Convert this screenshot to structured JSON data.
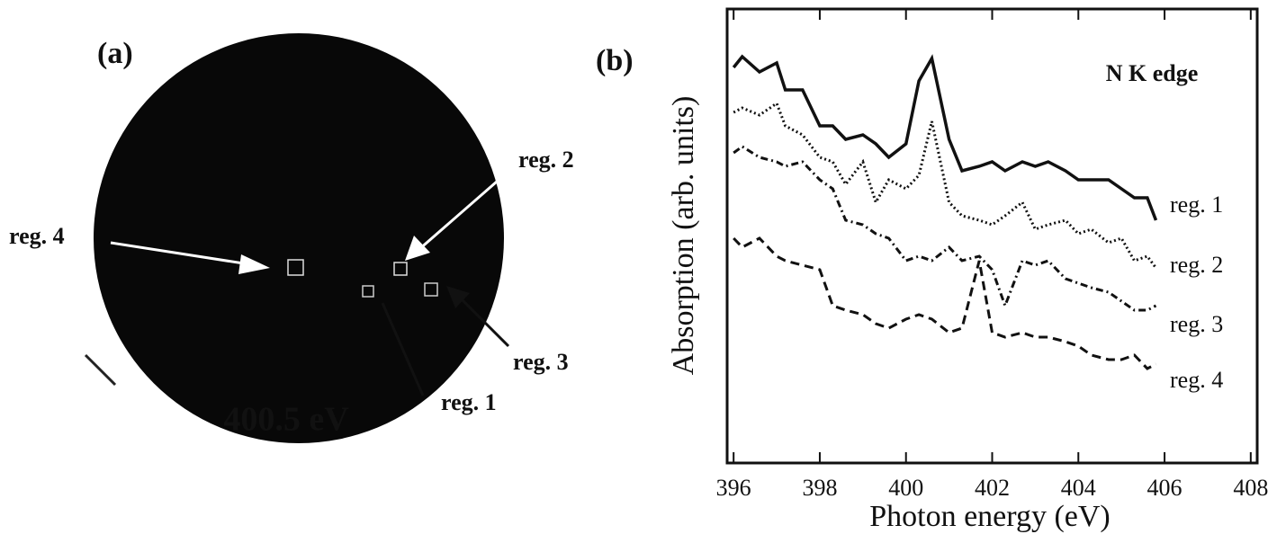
{
  "image_panel": {
    "label": "(a)",
    "caption": "400.5 eV",
    "regions": [
      "reg. 1",
      "reg. 2",
      "reg. 3",
      "reg. 4"
    ]
  },
  "chart_data": {
    "type": "line",
    "panel_label": "(b)",
    "annotation": "N K edge",
    "x_label": "Photon energy (eV)",
    "y_label": "Absorption (arb. units)",
    "x": [
      396.0,
      396.2,
      396.6,
      397.0,
      397.2,
      397.6,
      398.0,
      398.3,
      398.6,
      399.0,
      399.3,
      399.6,
      400.0,
      400.3,
      400.6,
      401.0,
      401.3,
      401.7,
      402.0,
      402.3,
      402.7,
      403.0,
      403.3,
      403.7,
      404.0,
      404.3,
      404.7,
      405.0,
      405.3,
      405.6,
      405.8
    ],
    "series": [
      {
        "name": "reg. 1",
        "color": "#111111",
        "dash": "solid",
        "values": [
          8.8,
          9.04,
          8.7,
          8.9,
          8.3,
          8.3,
          7.5,
          7.5,
          7.2,
          7.3,
          7.1,
          6.8,
          7.1,
          8.5,
          9.0,
          7.2,
          6.5,
          6.6,
          6.7,
          6.5,
          6.7,
          6.6,
          6.7,
          6.5,
          6.3,
          6.3,
          6.3,
          6.1,
          5.9,
          5.9,
          5.4
        ]
      },
      {
        "name": "reg. 2",
        "color": "#111111",
        "dash": "dotted",
        "values": [
          7.8,
          7.9,
          7.74,
          8.0,
          7.5,
          7.3,
          6.8,
          6.7,
          6.2,
          6.7,
          5.8,
          6.3,
          6.1,
          6.4,
          7.6,
          5.8,
          5.5,
          5.4,
          5.3,
          5.5,
          5.8,
          5.2,
          5.3,
          5.4,
          5.1,
          5.2,
          4.9,
          5.0,
          4.5,
          4.6,
          4.34
        ]
      },
      {
        "name": "reg. 3",
        "color": "#111111",
        "dash": "dashdot",
        "values": [
          6.9,
          7.04,
          6.8,
          6.7,
          6.6,
          6.7,
          6.3,
          6.1,
          5.4,
          5.3,
          5.1,
          5.0,
          4.5,
          4.6,
          4.5,
          4.8,
          4.5,
          4.6,
          4.3,
          3.5,
          4.5,
          4.4,
          4.5,
          4.1,
          4.0,
          3.9,
          3.8,
          3.6,
          3.4,
          3.4,
          3.5
        ]
      },
      {
        "name": "reg. 4",
        "color": "#111111",
        "dash": "dashed",
        "values": [
          5.0,
          4.8,
          5.0,
          4.6,
          4.5,
          4.4,
          4.3,
          3.5,
          3.4,
          3.3,
          3.1,
          3.0,
          3.2,
          3.3,
          3.2,
          2.9,
          3.0,
          4.5,
          2.9,
          2.8,
          2.9,
          2.8,
          2.8,
          2.7,
          2.6,
          2.4,
          2.3,
          2.3,
          2.4,
          2.1,
          2.2
        ]
      }
    ],
    "xlim": [
      395.85,
      408.15
    ],
    "xticks": [
      396,
      398,
      400,
      402,
      404,
      406,
      408
    ],
    "ylim": [
      0,
      10.1
    ]
  }
}
